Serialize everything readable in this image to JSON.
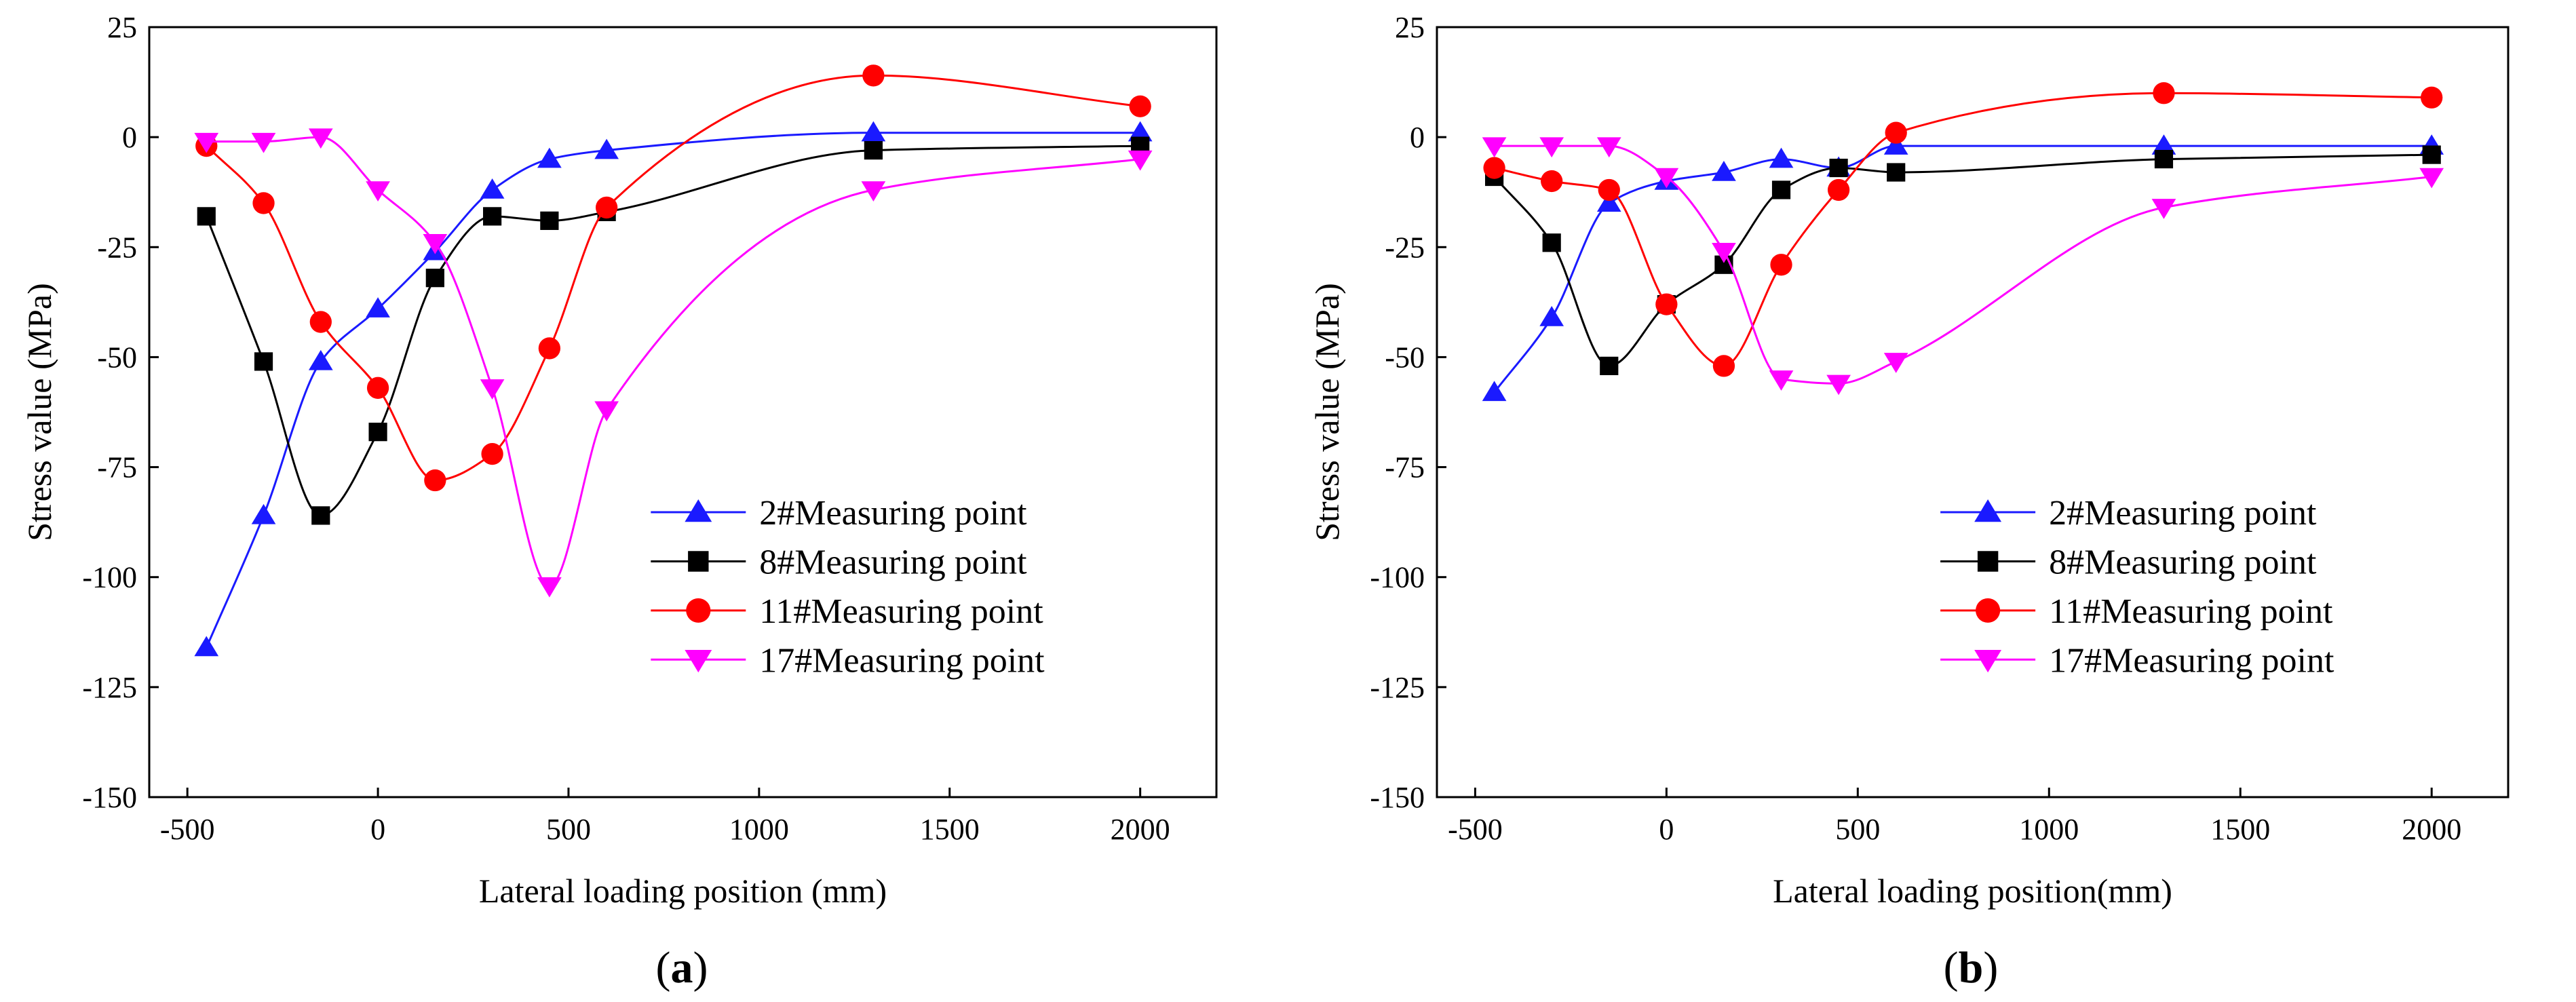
{
  "chart_data": [
    {
      "type": "line",
      "panel_label": "a",
      "title": "",
      "xlabel": "Lateral loading position (mm)",
      "ylabel": "Stress value (MPa)",
      "xlim": [
        -600,
        2200
      ],
      "ylim": [
        -150,
        25
      ],
      "x_ticks": [
        -500,
        0,
        500,
        1000,
        1500,
        2000
      ],
      "x_tick_labels": [
        "-500",
        "0",
        "500",
        "1000",
        "1500",
        "2000"
      ],
      "y_ticks": [
        -150,
        -125,
        -100,
        -75,
        -50,
        -25,
        0,
        25
      ],
      "y_tick_labels": [
        "-150",
        "-125",
        "-100",
        "-75",
        "-50",
        "-25",
        "0",
        "25"
      ],
      "grid": false,
      "legend_position": "bottom-right",
      "x": [
        -450,
        -300,
        -150,
        0,
        150,
        300,
        450,
        600,
        1300,
        2000
      ],
      "series": [
        {
          "name": "2#Measuring point",
          "color": "#1a1aff",
          "marker": "triangle-up",
          "values": [
            -116,
            -86,
            -51,
            -39,
            -26,
            -12,
            -5,
            -3,
            1,
            1
          ]
        },
        {
          "name": "8#Measuring point",
          "color": "#000000",
          "marker": "square",
          "values": [
            -18,
            -51,
            -86,
            -67,
            -32,
            -18,
            -19,
            -17,
            -3,
            -2
          ]
        },
        {
          "name": "11#Measuring point",
          "color": "#ff0000",
          "marker": "circle",
          "values": [
            -2,
            -15,
            -42,
            -57,
            -78,
            -72,
            -48,
            -16,
            14,
            7
          ]
        },
        {
          "name": "17#Measuring point",
          "color": "#ff00ff",
          "marker": "triangle-down",
          "values": [
            -1,
            -1,
            0,
            -12,
            -24,
            -57,
            -102,
            -62,
            -12,
            -5
          ]
        }
      ]
    },
    {
      "type": "line",
      "panel_label": "b",
      "title": "",
      "xlabel": "Lateral loading position(mm)",
      "ylabel": "Stress value (MPa)",
      "xlim": [
        -600,
        2200
      ],
      "ylim": [
        -150,
        25
      ],
      "x_ticks": [
        -500,
        0,
        500,
        1000,
        1500,
        2000
      ],
      "x_tick_labels": [
        "-500",
        "0",
        "500",
        "1000",
        "1500",
        "2000"
      ],
      "y_ticks": [
        -150,
        -125,
        -100,
        -75,
        -50,
        -25,
        0,
        25
      ],
      "y_tick_labels": [
        "-150",
        "-125",
        "-100",
        "-75",
        "-50",
        "-25",
        "0",
        "25"
      ],
      "grid": false,
      "legend_position": "bottom-right",
      "x": [
        -450,
        -300,
        -150,
        0,
        150,
        300,
        450,
        600,
        1300,
        2000
      ],
      "series": [
        {
          "name": "2#Measuring point",
          "color": "#1a1aff",
          "marker": "triangle-up",
          "values": [
            -58,
            -41,
            -15,
            -10,
            -8,
            -5,
            -7,
            -2,
            -2,
            -2
          ]
        },
        {
          "name": "8#Measuring point",
          "color": "#000000",
          "marker": "square",
          "values": [
            -9,
            -24,
            -52,
            -38,
            -29,
            -12,
            -7,
            -8,
            -5,
            -4
          ]
        },
        {
          "name": "11#Measuring point",
          "color": "#ff0000",
          "marker": "circle",
          "values": [
            -7,
            -10,
            -12,
            -38,
            -52,
            -29,
            -12,
            1,
            10,
            9
          ]
        },
        {
          "name": "17#Measuring point",
          "color": "#ff00ff",
          "marker": "triangle-down",
          "values": [
            -2,
            -2,
            -2,
            -9,
            -26,
            -55,
            -56,
            -51,
            -16,
            -9
          ]
        }
      ]
    }
  ]
}
